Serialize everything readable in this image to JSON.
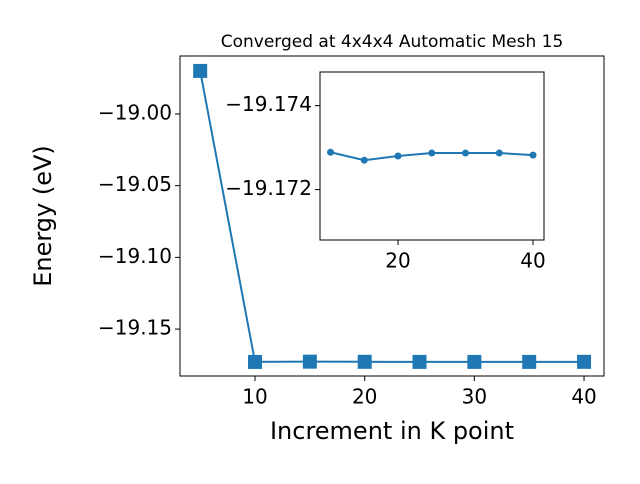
{
  "chart_data": [
    {
      "type": "line",
      "title": "Converged at 4x4x4 Automatic Mesh 15",
      "x_label": "Increment in K point",
      "y_label": "Energy (eV)",
      "x": [
        5,
        10,
        15,
        20,
        25,
        30,
        35,
        40
      ],
      "series": [
        {
          "name": "energy",
          "color": "#1f77b4",
          "marker": "square",
          "values": [
            -18.97,
            -19.17289,
            -19.1727,
            -19.1728,
            -19.17287,
            -19.17287,
            -19.17287,
            -19.17282
          ]
        }
      ],
      "xlim": [
        3.16,
        41.82
      ],
      "ylim": [
        -19.1827,
        -18.9596
      ],
      "xticks": [
        10,
        20,
        30,
        40
      ],
      "yticks": [
        {
          "value": -19.0,
          "label": "−19.00"
        },
        {
          "value": -19.05,
          "label": "−19.05"
        },
        {
          "value": -19.1,
          "label": "−19.10"
        },
        {
          "value": -19.15,
          "label": "−19.15"
        }
      ]
    },
    {
      "type": "line",
      "x": [
        10,
        15,
        20,
        25,
        30,
        35,
        40
      ],
      "series": [
        {
          "name": "energy",
          "color": "#1f77b4",
          "marker": "circle",
          "values": [
            -19.17289,
            -19.1727,
            -19.1728,
            -19.17287,
            -19.17287,
            -19.17287,
            -19.17282
          ]
        }
      ],
      "xlim": [
        8.44,
        41.63
      ],
      "ylim": [
        -19.1708,
        -19.1748
      ],
      "xticks": [
        20,
        40
      ],
      "yticks": [
        {
          "value": -19.174,
          "label": "−19.174"
        },
        {
          "value": -19.172,
          "label": "−19.172"
        }
      ]
    }
  ]
}
